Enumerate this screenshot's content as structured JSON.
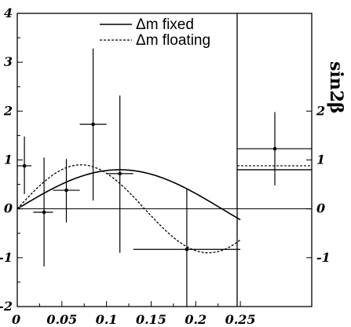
{
  "chart_data": {
    "type": "scatter",
    "xlim": [
      0,
      0.33
    ],
    "ylim": [
      -2,
      4
    ],
    "x_ticks": [
      "0",
      "0.05",
      "0.1",
      "0.15",
      "0.2",
      "0.25"
    ],
    "x_tick_values": [
      0,
      0.05,
      0.1,
      0.15,
      0.2,
      0.25
    ],
    "y_ticks": [
      "-2",
      "-1",
      "0",
      "1",
      "2",
      "3",
      "4"
    ],
    "y_tick_values": [
      -2,
      -1,
      0,
      1,
      2,
      3,
      4
    ],
    "right_ticks": [
      "-1",
      "0",
      "1",
      "2"
    ],
    "right_tick_values": [
      -1,
      0,
      1,
      2
    ],
    "right_label": "sin2β",
    "legend": [
      {
        "label": "Δm fixed",
        "style": "solid"
      },
      {
        "label": "Δm floating",
        "style": "dashed"
      }
    ],
    "points": [
      {
        "x": 0.008,
        "y": 0.88,
        "xlo": 0.0,
        "xhi": 0.016,
        "ylo": 0.3,
        "yhi": 1.48
      },
      {
        "x": 0.03,
        "y": -0.07,
        "xlo": 0.018,
        "xhi": 0.04,
        "ylo": -1.18,
        "yhi": 1.05
      },
      {
        "x": 0.055,
        "y": 0.38,
        "xlo": 0.04,
        "xhi": 0.07,
        "ylo": -0.28,
        "yhi": 1.02
      },
      {
        "x": 0.085,
        "y": 1.73,
        "xlo": 0.07,
        "xhi": 0.1,
        "ylo": 0.17,
        "yhi": 3.28
      },
      {
        "x": 0.115,
        "y": 0.72,
        "xlo": 0.1,
        "xhi": 0.13,
        "ylo": -0.9,
        "yhi": 2.32
      },
      {
        "x": 0.19,
        "y": -0.83,
        "xlo": 0.13,
        "xhi": 0.25,
        "ylo": -2.0,
        "yhi": 0.42
      }
    ],
    "side_measurements": [
      {
        "y": 1.23,
        "ylo": 0.48,
        "yhi": 1.98,
        "label": "point"
      },
      {
        "y": 0.88,
        "label": "floating band",
        "style": "dashed"
      },
      {
        "y": 0.8,
        "label": "fixed band",
        "style": "solid"
      }
    ]
  }
}
